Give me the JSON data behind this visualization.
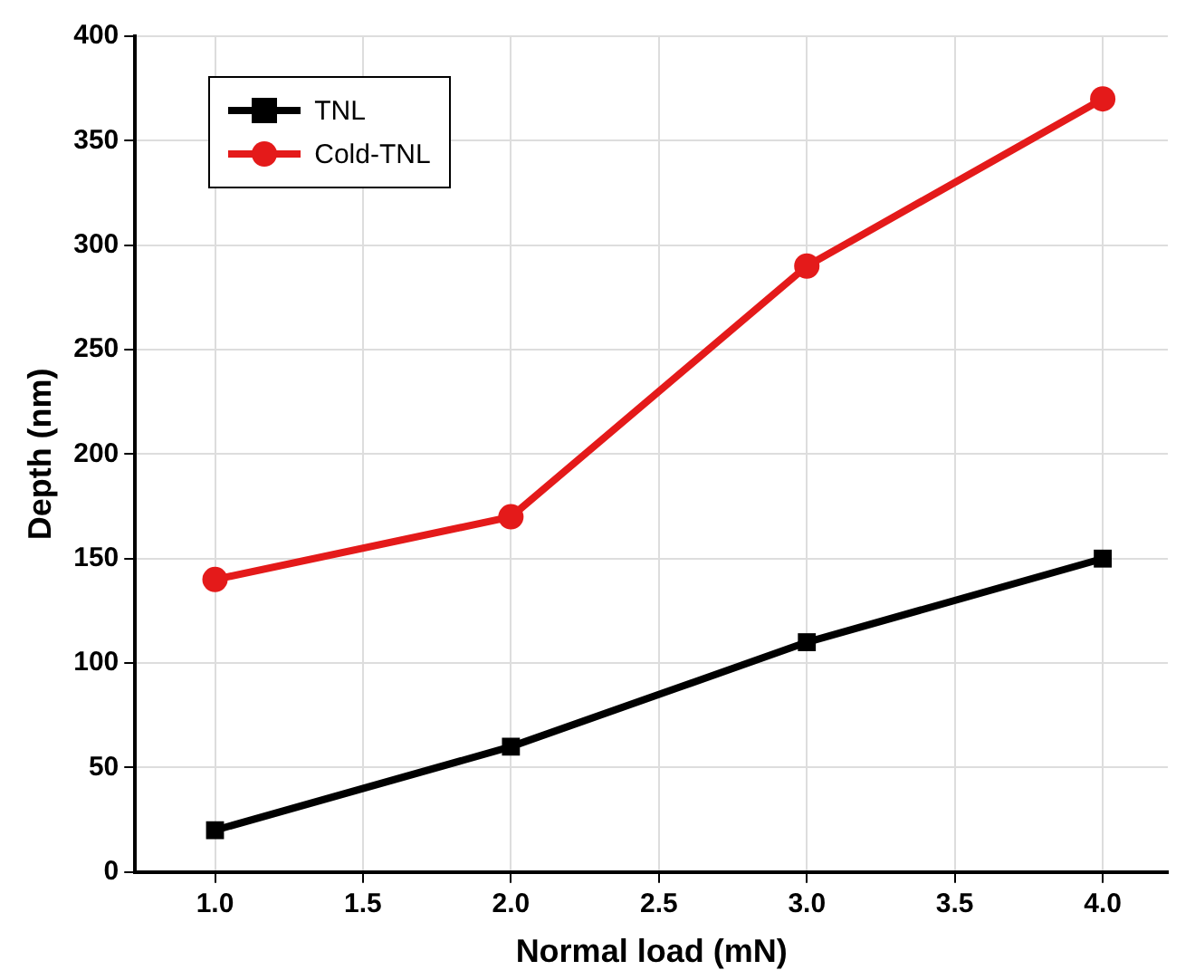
{
  "chart_data": {
    "type": "line",
    "xlabel": "Normal load (mN)",
    "ylabel": "Depth (nm)",
    "x": [
      1.0,
      2.0,
      3.0,
      4.0
    ],
    "xlim": [
      0.73,
      4.22
    ],
    "xticks": [
      {
        "value": 1,
        "label": "1.0"
      },
      {
        "value": 1.5,
        "label": "1.5"
      },
      {
        "value": 2,
        "label": "2.0"
      },
      {
        "value": 2.5,
        "label": "2.5"
      },
      {
        "value": 3,
        "label": "3.0"
      },
      {
        "value": 3.5,
        "label": "3.5"
      },
      {
        "value": 4,
        "label": "4.0"
      }
    ],
    "ylim": [
      0,
      400
    ],
    "yticks": [
      0,
      50,
      100,
      150,
      200,
      250,
      300,
      350,
      400
    ],
    "grid": true,
    "legend": "top left",
    "line_style": "solid",
    "series": [
      {
        "name": "TNL",
        "color": "#000000",
        "marker": "square",
        "values": [
          20,
          60,
          110,
          150
        ]
      },
      {
        "name": "Cold-TNL",
        "color": "#e41a1a",
        "marker": "circle",
        "values": [
          140,
          170,
          290,
          370
        ]
      }
    ]
  }
}
